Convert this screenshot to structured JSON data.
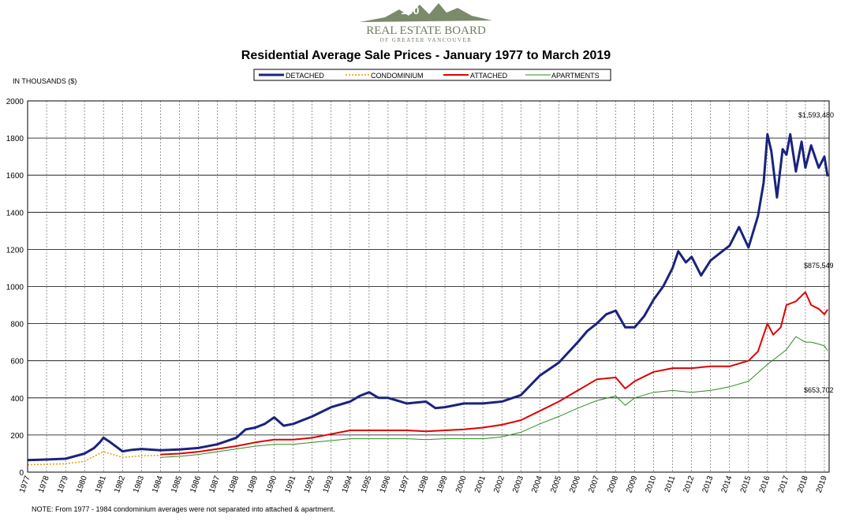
{
  "logo": {
    "name": "REAL ESTATE BOARD",
    "subtitle": "OF GREATER VANCOUVER",
    "badge": "100"
  },
  "chart_data": {
    "type": "line",
    "title": "Residential Average Sale Prices  -  January 1977 to March 2019",
    "units_label": "IN THOUSANDS ($)",
    "xlabel": "",
    "ylabel": "",
    "ylim": [
      0,
      2000
    ],
    "xlim": [
      1977,
      2019.25
    ],
    "y_ticks": [
      0,
      200,
      400,
      600,
      800,
      1000,
      1200,
      1400,
      1600,
      1800,
      2000
    ],
    "x_tick_labels": [
      "1977",
      "1978",
      "1979",
      "1980",
      "1981",
      "1982",
      "1983",
      "1984",
      "1985",
      "1986",
      "1987",
      "1988",
      "1989",
      "1990",
      "1991",
      "1992",
      "1993",
      "1994",
      "1995",
      "1996",
      "1997",
      "1998",
      "1999",
      "2000",
      "2001",
      "2002",
      "2003",
      "2004",
      "2005",
      "2006",
      "2007",
      "2008",
      "2009",
      "2010",
      "2011",
      "2012",
      "2013",
      "2014",
      "2015",
      "2016",
      "2017",
      "2018",
      "2019"
    ],
    "grid": true,
    "legend_position": "top-center",
    "series": [
      {
        "name": "DETACHED",
        "color": "#1a237e",
        "style": "solid-thick",
        "x": [
          1977,
          1978,
          1979,
          1980,
          1980.5,
          1980.8,
          1981.0,
          1981.3,
          1981.7,
          1982.0,
          1982.5,
          1983,
          1984,
          1985,
          1986,
          1987,
          1988,
          1988.5,
          1989,
          1989.5,
          1990,
          1990.5,
          1991,
          1992,
          1993,
          1994,
          1994.5,
          1995,
          1995.5,
          1996,
          1997,
          1998,
          1998.5,
          1999,
          2000,
          2001,
          2002,
          2003,
          2004,
          2005,
          2006,
          2006.5,
          2007,
          2007.5,
          2008,
          2008.5,
          2009,
          2009.5,
          2010,
          2010.5,
          2011,
          2011.3,
          2011.7,
          2012,
          2012.5,
          2013,
          2013.5,
          2014,
          2014.5,
          2015,
          2015.5,
          2015.8,
          2016,
          2016.2,
          2016.5,
          2016.8,
          2017,
          2017.2,
          2017.5,
          2017.8,
          2018,
          2018.3,
          2018.7,
          2019,
          2019.17
        ],
        "y": [
          65,
          68,
          72,
          100,
          130,
          160,
          185,
          165,
          135,
          112,
          120,
          125,
          118,
          122,
          130,
          150,
          185,
          230,
          240,
          260,
          295,
          250,
          260,
          300,
          350,
          380,
          410,
          430,
          400,
          400,
          370,
          380,
          345,
          350,
          370,
          370,
          380,
          415,
          520,
          590,
          700,
          760,
          800,
          850,
          870,
          780,
          780,
          840,
          930,
          1000,
          1100,
          1190,
          1130,
          1160,
          1060,
          1140,
          1180,
          1220,
          1320,
          1210,
          1380,
          1560,
          1820,
          1730,
          1480,
          1740,
          1710,
          1820,
          1620,
          1780,
          1640,
          1760,
          1640,
          1700,
          1593
        ]
      },
      {
        "name": "CONDOMINIUM",
        "color": "#e0a000",
        "style": "dotted",
        "x": [
          1977,
          1978,
          1979,
          1980,
          1980.5,
          1981,
          1981.5,
          1982,
          1983,
          1984
        ],
        "y": [
          40,
          42,
          45,
          58,
          85,
          110,
          95,
          80,
          88,
          90
        ]
      },
      {
        "name": "ATTACHED",
        "color": "#e00000",
        "style": "solid",
        "x": [
          1984,
          1985,
          1986,
          1987,
          1988,
          1989,
          1990,
          1991,
          1992,
          1993,
          1994,
          1995,
          1996,
          1997,
          1998,
          1999,
          2000,
          2001,
          2002,
          2003,
          2004,
          2005,
          2006,
          2007,
          2008,
          2008.5,
          2009,
          2010,
          2011,
          2012,
          2013,
          2014,
          2015,
          2015.5,
          2016,
          2016.3,
          2016.7,
          2017,
          2017.5,
          2018,
          2018.3,
          2018.7,
          2019,
          2019.17
        ],
        "y": [
          95,
          100,
          110,
          125,
          140,
          160,
          175,
          175,
          185,
          205,
          225,
          225,
          225,
          225,
          220,
          225,
          230,
          240,
          255,
          280,
          330,
          380,
          440,
          500,
          510,
          450,
          490,
          540,
          560,
          560,
          570,
          570,
          600,
          650,
          800,
          740,
          780,
          900,
          920,
          970,
          900,
          880,
          850,
          876
        ]
      },
      {
        "name": "APARTMENTS",
        "color": "#2e8b1e",
        "style": "solid-thin",
        "x": [
          1984,
          1985,
          1986,
          1987,
          1988,
          1989,
          1990,
          1991,
          1992,
          1993,
          1994,
          1995,
          1996,
          1997,
          1998,
          1999,
          2000,
          2001,
          2002,
          2003,
          2004,
          2005,
          2006,
          2007,
          2008,
          2008.5,
          2009,
          2010,
          2011,
          2012,
          2013,
          2014,
          2015,
          2016,
          2016.5,
          2017,
          2017.5,
          2018,
          2018.3,
          2018.7,
          2019,
          2019.17
        ],
        "y": [
          80,
          85,
          95,
          110,
          125,
          140,
          150,
          150,
          160,
          170,
          180,
          180,
          180,
          180,
          175,
          180,
          180,
          180,
          190,
          215,
          260,
          300,
          345,
          385,
          410,
          360,
          400,
          430,
          440,
          430,
          440,
          460,
          490,
          580,
          620,
          660,
          730,
          700,
          700,
          690,
          680,
          654
        ]
      }
    ],
    "annotations": [
      "$1,593,480",
      "$875,549",
      "$653,702"
    ]
  },
  "note": "NOTE:  From 1977 - 1984 condominium averages were not separated into attached & apartment."
}
